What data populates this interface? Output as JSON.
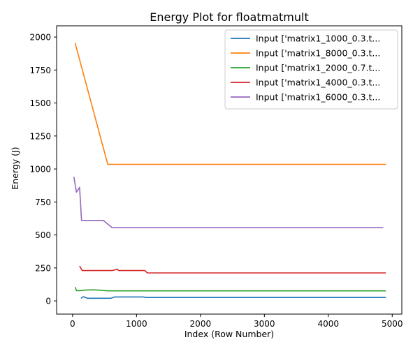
{
  "chart_data": {
    "type": "line",
    "title": "Energy Plot for floatmatmult",
    "xlabel": "Index (Row Number)",
    "ylabel": "Energy (J)",
    "xlim": [
      -250,
      5150
    ],
    "ylim": [
      -100,
      2085
    ],
    "xticks": [
      0,
      1000,
      2000,
      3000,
      4000,
      5000
    ],
    "yticks": [
      0,
      250,
      500,
      750,
      1000,
      1250,
      1500,
      1750,
      2000
    ],
    "grid": false,
    "legend_position": "top-right",
    "series": [
      {
        "name": "Input ['matrix1_1000_0.3.t...",
        "color": "#1f77b4",
        "points": [
          [
            130,
            20
          ],
          [
            170,
            32
          ],
          [
            230,
            20
          ],
          [
            600,
            20
          ],
          [
            660,
            30
          ],
          [
            1100,
            30
          ],
          [
            1160,
            26
          ],
          [
            4900,
            26
          ]
        ]
      },
      {
        "name": "Input ['matrix1_8000_0.3.t...",
        "color": "#ff7f0e",
        "points": [
          [
            40,
            1955
          ],
          [
            550,
            1035
          ],
          [
            4900,
            1035
          ]
        ]
      },
      {
        "name": "Input ['matrix1_2000_0.7.t...",
        "color": "#2ca02c",
        "points": [
          [
            40,
            105
          ],
          [
            60,
            78
          ],
          [
            120,
            78
          ],
          [
            200,
            82
          ],
          [
            330,
            84
          ],
          [
            560,
            76
          ],
          [
            4900,
            76
          ]
        ]
      },
      {
        "name": "Input ['matrix1_4000_0.3.t...",
        "color": "#d62728",
        "points": [
          [
            110,
            265
          ],
          [
            150,
            230
          ],
          [
            620,
            230
          ],
          [
            700,
            240
          ],
          [
            720,
            230
          ],
          [
            1130,
            230
          ],
          [
            1170,
            212
          ],
          [
            4900,
            212
          ]
        ]
      },
      {
        "name": "Input ['matrix1_6000_0.3.t...",
        "color": "#9467bd",
        "points": [
          [
            20,
            940
          ],
          [
            60,
            825
          ],
          [
            110,
            860
          ],
          [
            140,
            610
          ],
          [
            480,
            610
          ],
          [
            620,
            555
          ],
          [
            4860,
            555
          ]
        ]
      }
    ]
  }
}
